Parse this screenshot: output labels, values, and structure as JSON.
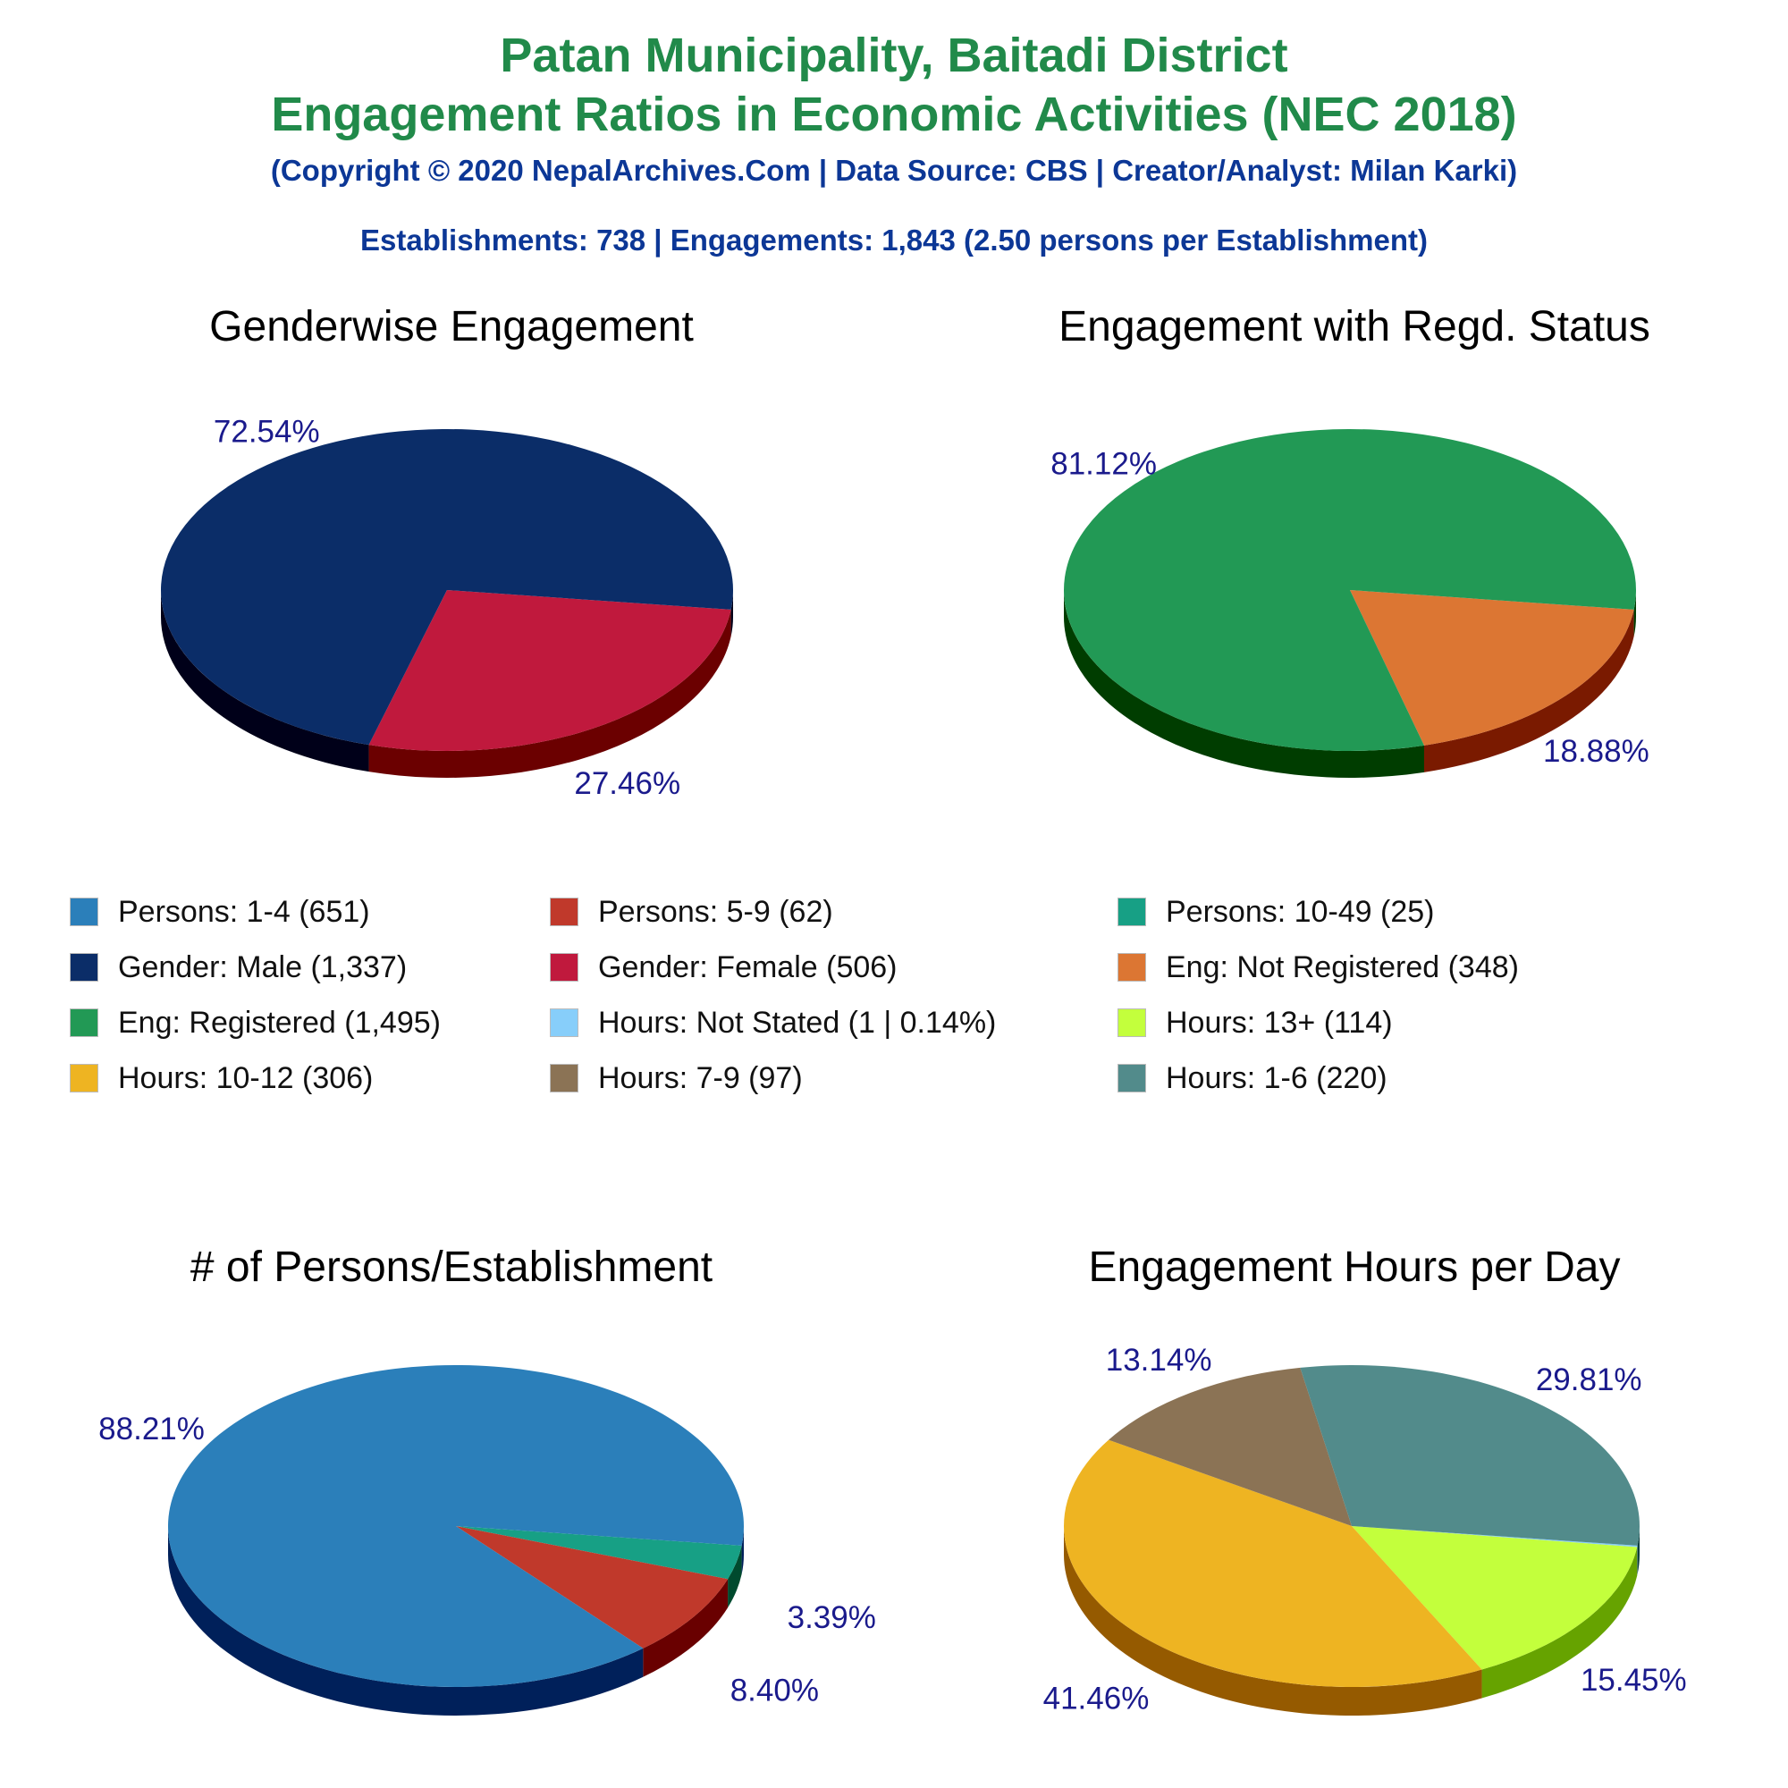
{
  "header": {
    "title_line1": "Patan Municipality, Baitadi District",
    "title_line2": "Engagement Ratios in Economic Activities (NEC 2018)",
    "copyright": "(Copyright © 2020 NepalArchives.Com | Data Source: CBS | Creator/Analyst: Milan Karki)",
    "summary": "Establishments: 738 | Engagements: 1,843 (2.50 persons per Establishment)"
  },
  "legend": [
    {
      "label": "Persons: 1-4 (651)",
      "color": "#2b7fba"
    },
    {
      "label": "Persons: 5-9 (62)",
      "color": "#c0392b"
    },
    {
      "label": "Persons: 10-49 (25)",
      "color": "#17a085"
    },
    {
      "label": "Gender: Male (1,337)",
      "color": "#0b2d68"
    },
    {
      "label": "Gender: Female (506)",
      "color": "#c0193d"
    },
    {
      "label": "Eng: Not Registered (348)",
      "color": "#dc7633"
    },
    {
      "label": "Eng: Registered (1,495)",
      "color": "#229955"
    },
    {
      "label": "Hours: Not Stated (1 | 0.14%)",
      "color": "#87cefa"
    },
    {
      "label": "Hours: 13+ (114)",
      "color": "#c3ff3c"
    },
    {
      "label": "Hours: 10-12 (306)",
      "color": "#eeb422"
    },
    {
      "label": "Hours: 7-9 (97)",
      "color": "#8b7355"
    },
    {
      "label": "Hours: 1-6 (220)",
      "color": "#528b8b"
    }
  ],
  "chart_data": [
    {
      "type": "pie",
      "title": "Genderwise Engagement",
      "start_deg": 7,
      "slices": [
        {
          "name": "Gender: Female",
          "value": 27.46,
          "label": "27.46%",
          "color": "#c0193d",
          "side": "#6b0000"
        },
        {
          "name": "Gender: Male",
          "value": 72.54,
          "label": "72.54%",
          "color": "#0b2d68",
          "side": "#000019"
        }
      ]
    },
    {
      "type": "pie",
      "title": "Engagement with Regd. Status",
      "start_deg": 7,
      "slices": [
        {
          "name": "Eng: Not Registered",
          "value": 18.88,
          "label": "18.88%",
          "color": "#dc7633",
          "side": "#7a1a00"
        },
        {
          "name": "Eng: Registered",
          "value": 81.12,
          "label": "81.12%",
          "color": "#229955",
          "side": "#003d00"
        }
      ]
    },
    {
      "type": "pie",
      "title": "# of Persons/Establishment",
      "start_deg": 7,
      "slices": [
        {
          "name": "Persons: 10-49",
          "value": 3.39,
          "label": "3.39%",
          "color": "#17a085",
          "side": "#004a2e"
        },
        {
          "name": "Persons: 5-9",
          "value": 8.4,
          "label": "8.40%",
          "color": "#c0392b",
          "side": "#690000"
        },
        {
          "name": "Persons: 1-4",
          "value": 88.21,
          "label": "88.21%",
          "color": "#2b7fba",
          "side": "#00205a"
        }
      ]
    },
    {
      "type": "pie",
      "title": "Engagement Hours per Day",
      "start_deg": 7,
      "slices": [
        {
          "name": "Hours: Not Stated",
          "value": 0.14,
          "label": "",
          "color": "#87cefa",
          "side": "#3b7ba8"
        },
        {
          "name": "Hours: 13+",
          "value": 15.45,
          "label": "15.45%",
          "color": "#c3ff3c",
          "side": "#66a300"
        },
        {
          "name": "Hours: 10-12",
          "value": 41.46,
          "label": "41.46%",
          "color": "#eeb422",
          "side": "#955a00"
        },
        {
          "name": "Hours: 7-9",
          "value": 13.14,
          "label": "13.14%",
          "color": "#8b7355",
          "side": "#3d2a10"
        },
        {
          "name": "Hours: 1-6",
          "value": 29.81,
          "label": "29.81%",
          "color": "#528b8b",
          "side": "#0b3d3d"
        }
      ]
    }
  ]
}
